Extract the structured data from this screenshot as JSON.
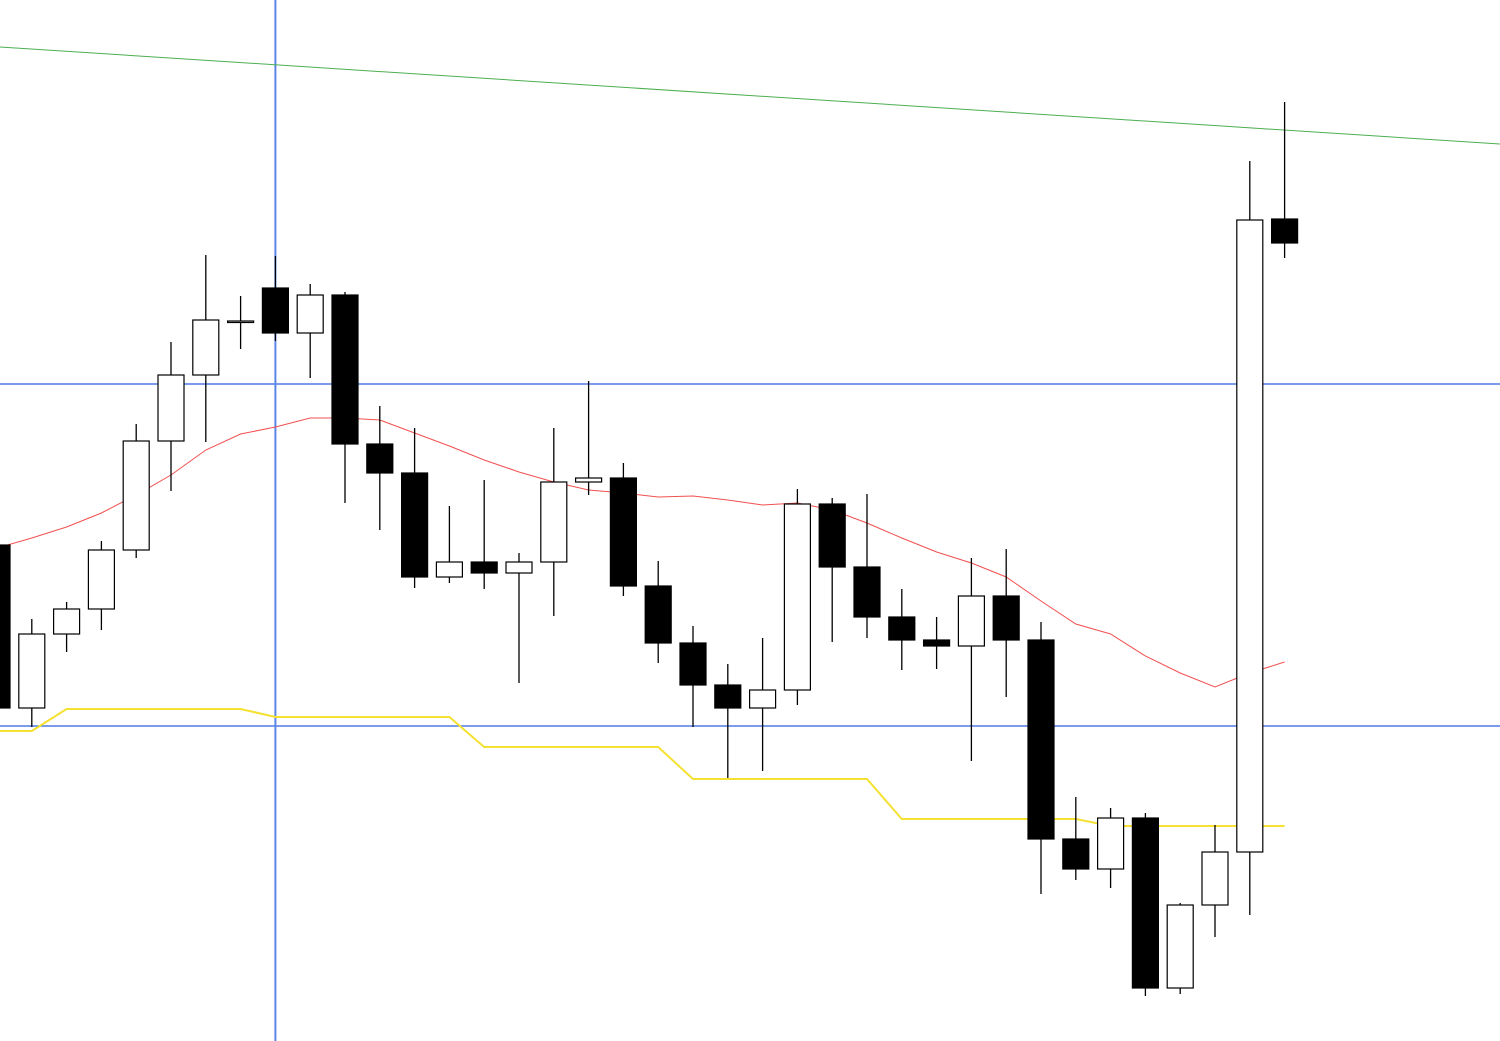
{
  "chart_data": {
    "type": "candlestick",
    "ylim": [
      0,
      1041
    ],
    "open": [
      496,
      333,
      407,
      432,
      491,
      600,
      666,
      720,
      753,
      708,
      746,
      597,
      568,
      464,
      479,
      468,
      479,
      559,
      563,
      455,
      398,
      356,
      333,
      351,
      537,
      474,
      424,
      401,
      395,
      445,
      401,
      202,
      172,
      223,
      53,
      136,
      189,
      822
    ],
    "high": [
      496,
      422,
      439,
      500,
      617,
      699,
      786,
      745,
      785,
      757,
      749,
      635,
      613,
      535,
      561,
      488,
      613,
      660,
      578,
      480,
      415,
      377,
      403,
      552,
      543,
      547,
      452,
      424,
      483,
      492,
      419,
      244,
      233,
      228,
      138,
      216,
      880,
      939
    ],
    "low": [
      331,
      314,
      389,
      411,
      483,
      550,
      599,
      692,
      700,
      663,
      538,
      511,
      453,
      458,
      452,
      358,
      425,
      546,
      445,
      378,
      314,
      263,
      270,
      336,
      399,
      403,
      371,
      372,
      280,
      344,
      147,
      161,
      153,
      45,
      47,
      104,
      126,
      783
    ],
    "close": [
      333,
      407,
      432,
      491,
      600,
      666,
      721,
      720,
      708,
      746,
      597,
      568,
      464,
      479,
      468,
      479,
      559,
      563,
      455,
      398,
      356,
      333,
      351,
      537,
      474,
      424,
      401,
      395,
      445,
      401,
      202,
      172,
      223,
      53,
      136,
      189,
      821,
      798
    ],
    "lines": [
      {
        "color": "#f25050",
        "width": 1,
        "values": [
          493,
          503,
          514,
          528,
          546,
          566,
          591,
          607,
          614,
          623,
          623,
          621,
          608,
          595,
          581,
          569,
          559,
          551,
          548,
          544,
          545,
          541,
          536,
          538,
          531,
          518,
          503,
          489,
          478,
          464,
          440,
          417,
          407,
          385,
          368,
          354,
          368,
          379
        ]
      },
      {
        "color": "#f5e132",
        "width": 2,
        "values": [
          310,
          310,
          332,
          332,
          332,
          332,
          332,
          332,
          324,
          324,
          324,
          324,
          324,
          324,
          294,
          294,
          294,
          294,
          294,
          294,
          262,
          262,
          262,
          262,
          262,
          262,
          222,
          222,
          222,
          222,
          222,
          222,
          215,
          215,
          215,
          215,
          215,
          215
        ]
      }
    ],
    "horizontal_lines": {
      "color": "#2f5fe0",
      "values": [
        657,
        315
      ]
    },
    "vertical_line": {
      "color": "#5b86e6",
      "index": 8
    },
    "trend_line": {
      "color": "#4caf50",
      "values": [
        994,
        897
      ]
    },
    "up_color": "#ffffff",
    "down_color": "#000000"
  }
}
